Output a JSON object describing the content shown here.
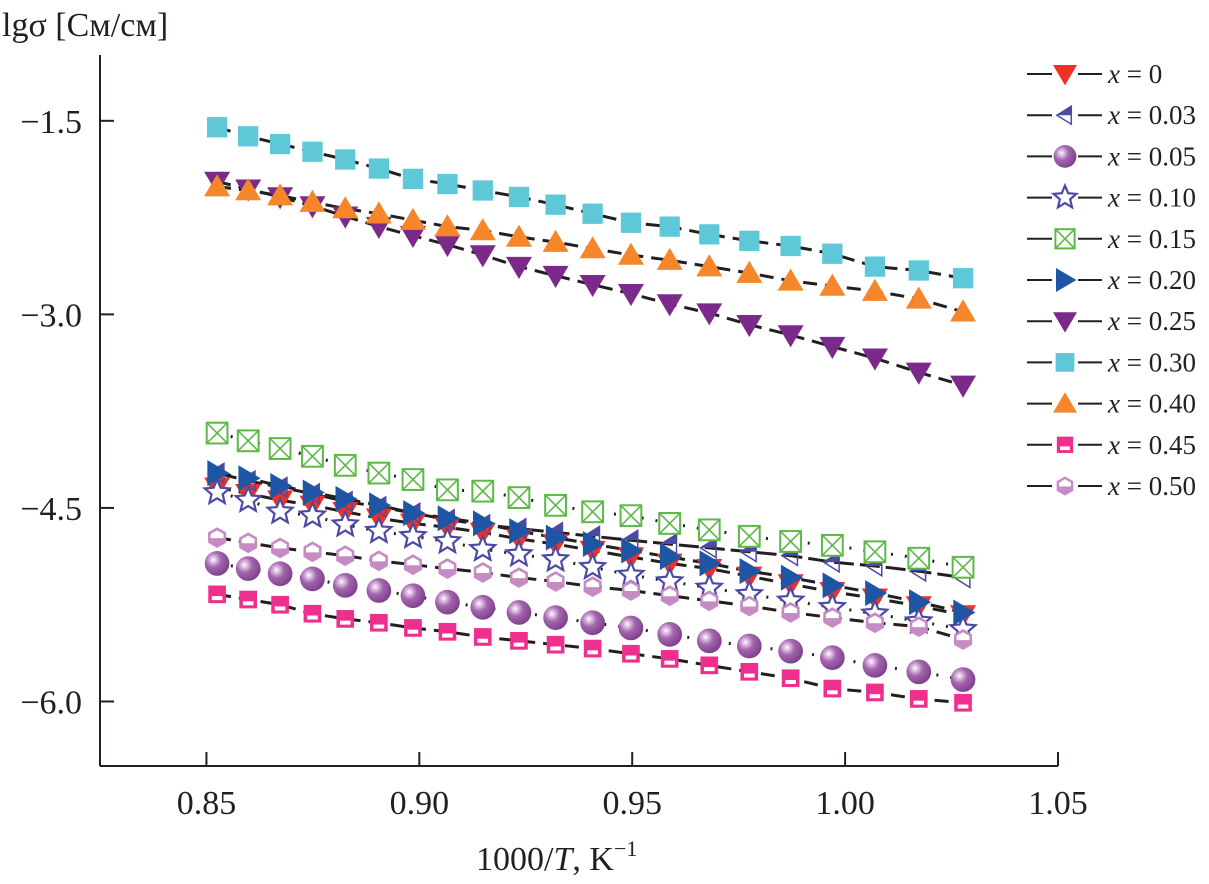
{
  "chart_data": {
    "type": "scatter",
    "title": "",
    "ylabel": "lgσ [См/см]",
    "xlabel_parts": [
      "1000/",
      "T",
      ", K",
      "−1"
    ],
    "xlabel": "1000/T, K−1",
    "xlim": [
      0.825,
      1.05
    ],
    "ylim": [
      -6.5,
      -0.99
    ],
    "xticks": [
      0.85,
      0.9,
      0.95,
      1.0,
      1.05
    ],
    "xtick_labels": [
      "0.85",
      "0.90",
      "0.95",
      "1.00",
      "1.05"
    ],
    "yticks": [
      -1.5,
      -3.0,
      -4.5,
      -6.0
    ],
    "ytick_labels": [
      "−1.5",
      "−3.0",
      "−4.5",
      "−6.0"
    ],
    "grid": false,
    "legend_position": "top-right",
    "x": [
      0.8525,
      0.8598,
      0.8673,
      0.8749,
      0.8826,
      0.8905,
      0.8985,
      0.9066,
      0.9149,
      0.9234,
      0.932,
      0.9407,
      0.9497,
      0.9588,
      0.9681,
      0.9775,
      0.9872,
      0.997,
      1.007,
      1.0173,
      1.0277
    ],
    "series": [
      {
        "name": "x = 0",
        "var": "x",
        "label": " = 0",
        "marker": "triangle-down",
        "color": "#ee3124",
        "line": "dashed",
        "values": [
          -4.34,
          -4.39,
          -4.44,
          -4.48,
          -4.53,
          -4.58,
          -4.62,
          -4.65,
          -4.69,
          -4.74,
          -4.78,
          -4.83,
          -4.88,
          -4.93,
          -4.97,
          -5.03,
          -5.09,
          -5.15,
          -5.2,
          -5.26,
          -5.33
        ]
      },
      {
        "name": "x = 0.03",
        "var": "x",
        "label": " = 0.03",
        "marker": "triangle-left-half",
        "color": "#4b4ba5",
        "line": "longdash",
        "values": [
          -4.23,
          -4.29,
          -4.34,
          -4.39,
          -4.45,
          -4.49,
          -4.54,
          -4.59,
          -4.63,
          -4.66,
          -4.69,
          -4.72,
          -4.75,
          -4.78,
          -4.81,
          -4.84,
          -4.87,
          -4.92,
          -4.95,
          -4.99,
          -5.04
        ]
      },
      {
        "name": "x = 0.05",
        "var": "x",
        "label": " = 0.05",
        "marker": "sphere",
        "color": "#9b59a6",
        "line": "dotdash",
        "values": [
          -4.93,
          -4.97,
          -5.01,
          -5.05,
          -5.1,
          -5.14,
          -5.18,
          -5.23,
          -5.27,
          -5.31,
          -5.35,
          -5.39,
          -5.43,
          -5.48,
          -5.53,
          -5.57,
          -5.61,
          -5.66,
          -5.72,
          -5.77,
          -5.83
        ]
      },
      {
        "name": "x = 0.10",
        "var": "x",
        "label": " = 0.10",
        "marker": "star-open",
        "color": "#4b4ba5",
        "line": "dotdash",
        "values": [
          -4.38,
          -4.44,
          -4.53,
          -4.56,
          -4.63,
          -4.68,
          -4.72,
          -4.76,
          -4.82,
          -4.86,
          -4.9,
          -4.96,
          -5.02,
          -5.07,
          -5.12,
          -5.17,
          -5.22,
          -5.27,
          -5.32,
          -5.38,
          -5.44
        ]
      },
      {
        "name": "x = 0.15",
        "var": "x",
        "label": " = 0.15",
        "marker": "square-x",
        "color": "#5cb947",
        "line": "dotdash",
        "values": [
          -3.92,
          -3.98,
          -4.04,
          -4.1,
          -4.17,
          -4.23,
          -4.28,
          -4.36,
          -4.37,
          -4.42,
          -4.48,
          -4.53,
          -4.56,
          -4.62,
          -4.67,
          -4.72,
          -4.76,
          -4.79,
          -4.84,
          -4.89,
          -4.96
        ]
      },
      {
        "name": "x = 0.20",
        "var": "x",
        "label": " = 0.20",
        "marker": "triangle-right",
        "color": "#1f55a5",
        "line": "dashed",
        "values": [
          -4.23,
          -4.27,
          -4.33,
          -4.38,
          -4.43,
          -4.48,
          -4.54,
          -4.58,
          -4.62,
          -4.68,
          -4.73,
          -4.78,
          -4.83,
          -4.88,
          -4.93,
          -4.99,
          -5.04,
          -5.1,
          -5.16,
          -5.23,
          -5.31
        ]
      },
      {
        "name": "x = 0.25",
        "var": "x",
        "label": " = 0.25",
        "marker": "triangle-down",
        "color": "#7b2a8b",
        "line": "dashed",
        "values": [
          -1.97,
          -2.03,
          -2.09,
          -2.16,
          -2.24,
          -2.32,
          -2.39,
          -2.46,
          -2.54,
          -2.63,
          -2.7,
          -2.77,
          -2.84,
          -2.92,
          -2.99,
          -3.08,
          -3.16,
          -3.25,
          -3.34,
          -3.45,
          -3.55
        ]
      },
      {
        "name": "x = 0.30",
        "var": "x",
        "label": " = 0.30",
        "marker": "square",
        "color": "#5ec8d8",
        "line": "dashed",
        "values": [
          -1.55,
          -1.62,
          -1.68,
          -1.74,
          -1.8,
          -1.87,
          -1.95,
          -1.99,
          -2.04,
          -2.09,
          -2.15,
          -2.22,
          -2.29,
          -2.32,
          -2.38,
          -2.43,
          -2.47,
          -2.53,
          -2.63,
          -2.66,
          -2.72
        ]
      },
      {
        "name": "x = 0.40",
        "var": "x",
        "label": " = 0.40",
        "marker": "triangle-up",
        "color": "#f5862a",
        "line": "dashed",
        "values": [
          -2.01,
          -2.04,
          -2.08,
          -2.13,
          -2.18,
          -2.22,
          -2.27,
          -2.32,
          -2.35,
          -2.4,
          -2.44,
          -2.49,
          -2.54,
          -2.58,
          -2.63,
          -2.68,
          -2.74,
          -2.78,
          -2.82,
          -2.88,
          -2.98
        ]
      },
      {
        "name": "x = 0.45",
        "var": "x",
        "label": " = 0.45",
        "marker": "square-half",
        "color": "#ee2f8d",
        "line": "dashed",
        "values": [
          -5.17,
          -5.21,
          -5.25,
          -5.32,
          -5.36,
          -5.39,
          -5.43,
          -5.46,
          -5.5,
          -5.53,
          -5.56,
          -5.59,
          -5.63,
          -5.67,
          -5.72,
          -5.77,
          -5.82,
          -5.9,
          -5.93,
          -5.98,
          -6.01
        ]
      },
      {
        "name": "x = 0.50",
        "var": "x",
        "label": " = 0.50",
        "marker": "hexagon-half",
        "color": "#c68bc2",
        "line": "dashed",
        "values": [
          -4.73,
          -4.77,
          -4.81,
          -4.84,
          -4.87,
          -4.91,
          -4.94,
          -4.97,
          -5.0,
          -5.04,
          -5.07,
          -5.11,
          -5.14,
          -5.18,
          -5.22,
          -5.26,
          -5.31,
          -5.35,
          -5.39,
          -5.42,
          -5.52
        ]
      }
    ]
  }
}
